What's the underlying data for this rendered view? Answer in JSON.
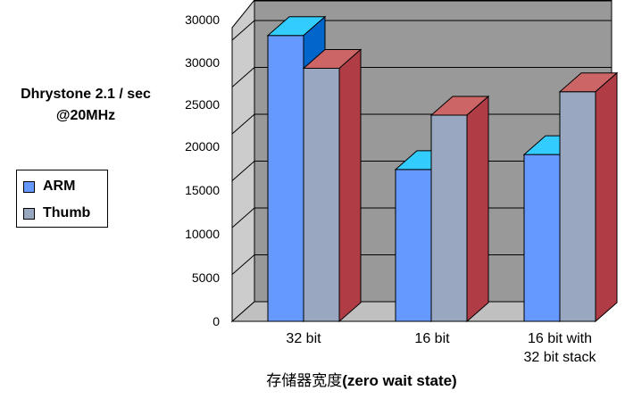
{
  "chart_data": {
    "type": "bar",
    "style": "3d-clustered",
    "ylabel": [
      "Dhrystone 2.1 / sec",
      "@20MHz"
    ],
    "xlabel": "存储器宽度(zero wait state)",
    "xlabel_cjk": "存储器宽度",
    "xlabel_latin": "(zero wait state)",
    "categories": [
      [
        "32 bit"
      ],
      [
        "16 bit"
      ],
      [
        "16 bit with",
        "32 bit stack"
      ]
    ],
    "ylim": [
      0,
      30000
    ],
    "yticks": [
      "0",
      "5000",
      "10000",
      "15000",
      "20000",
      "25000",
      "30000",
      "30000"
    ],
    "grid": true,
    "legend_position": "left",
    "series": [
      {
        "name": "ARM",
        "values": [
          30500,
          16200,
          17800
        ],
        "color": "#6699FF",
        "top_color": "#33CCFF",
        "side_color": "#0066CC"
      },
      {
        "name": "Thumb",
        "values": [
          27000,
          22000,
          24500
        ],
        "color": "#99A8C0",
        "top_color": "#CC6666",
        "side_color": "#B03C46"
      }
    ]
  }
}
